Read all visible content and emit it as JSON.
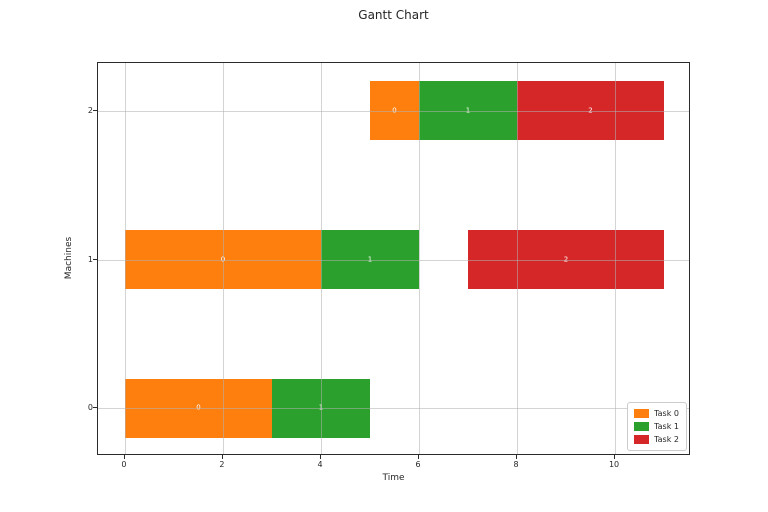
{
  "title": "Gantt Chart",
  "chart_data": {
    "type": "bar",
    "variant": "gantt",
    "title": "Gantt Chart",
    "xlabel": "Time",
    "ylabel": "Machines",
    "xlim": [
      -0.55,
      11.55
    ],
    "ylim": [
      -0.32,
      2.32
    ],
    "xticks": [
      0,
      2,
      4,
      6,
      8,
      10
    ],
    "yticks": [
      0,
      1,
      2
    ],
    "grid": true,
    "bar_height": 0.4,
    "machines": [
      {
        "machine": 0,
        "segments": [
          {
            "task": "Task 0",
            "label": "0",
            "start": 0,
            "end": 3
          },
          {
            "task": "Task 1",
            "label": "1",
            "start": 3,
            "end": 5
          }
        ]
      },
      {
        "machine": 1,
        "segments": [
          {
            "task": "Task 0",
            "label": "0",
            "start": 0,
            "end": 4
          },
          {
            "task": "Task 1",
            "label": "1",
            "start": 4,
            "end": 6
          },
          {
            "task": "Task 2",
            "label": "2",
            "start": 7,
            "end": 11
          }
        ]
      },
      {
        "machine": 2,
        "segments": [
          {
            "task": "Task 0",
            "label": "0",
            "start": 5,
            "end": 6
          },
          {
            "task": "Task 1",
            "label": "1",
            "start": 6,
            "end": 8
          },
          {
            "task": "Task 2",
            "label": "2",
            "start": 8,
            "end": 11
          }
        ]
      }
    ],
    "legend": {
      "position": "lower right",
      "entries": [
        {
          "label": "Task 0",
          "color": "#ff7f0e"
        },
        {
          "label": "Task 1",
          "color": "#2ca02c"
        },
        {
          "label": "Task 2",
          "color": "#d62728"
        }
      ]
    },
    "colors": {
      "task0": "#ff7f0e",
      "task1": "#2ca02c",
      "task2": "#d62728",
      "grid": "#b0b0b0",
      "spine": "#2b2b2b",
      "bar_label": "#ffffff"
    }
  }
}
